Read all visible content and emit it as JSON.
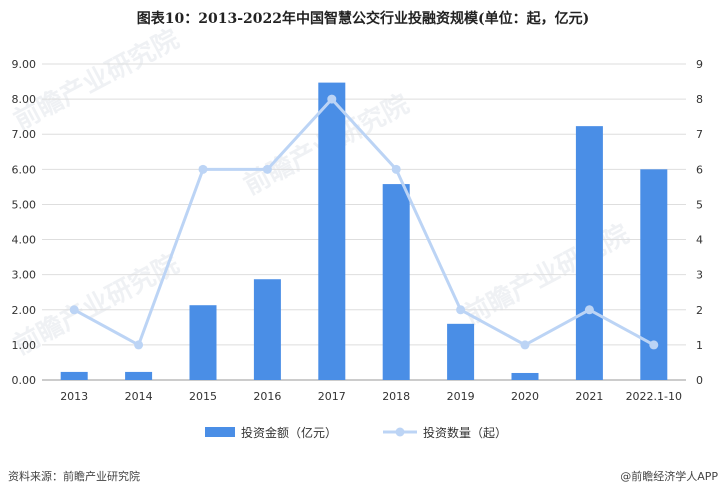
{
  "title": "图表10：2013-2022年中国智慧公交行业投融资规模(单位：起，亿元)",
  "footer": {
    "source": "资料来源：前瞻产业研究院",
    "brand": "@前瞻经济学人APP"
  },
  "watermark": "前瞻产业研究院",
  "chart_data": {
    "type": "bar",
    "title": "图表10：2013-2022年中国智慧公交行业投融资规模(单位：起，亿元)",
    "categories": [
      "2013",
      "2014",
      "2015",
      "2016",
      "2017",
      "2018",
      "2019",
      "2020",
      "2021",
      "2022.1-10"
    ],
    "y_left": {
      "ylim": [
        0,
        9
      ],
      "ticks": [
        "0.00",
        "1.00",
        "2.00",
        "3.00",
        "4.00",
        "5.00",
        "6.00",
        "7.00",
        "8.00",
        "9.00"
      ]
    },
    "y_right": {
      "ylim": [
        0,
        9
      ],
      "ticks": [
        "0",
        "1",
        "2",
        "3",
        "4",
        "5",
        "6",
        "7",
        "8",
        "9"
      ]
    },
    "grid": true,
    "legend_position": "bottom",
    "series": [
      {
        "name": "投资金额（亿元）",
        "type": "bar",
        "axis": "left",
        "color": "#4a8ee6",
        "values": [
          0.23,
          0.23,
          2.13,
          2.87,
          8.47,
          5.58,
          1.6,
          0.2,
          7.23,
          6.0
        ]
      },
      {
        "name": "投资数量（起）",
        "type": "line",
        "axis": "right",
        "color": "#bcd4f5",
        "values": [
          2,
          1,
          6,
          6,
          8,
          6,
          2,
          1,
          2,
          1
        ]
      }
    ]
  }
}
